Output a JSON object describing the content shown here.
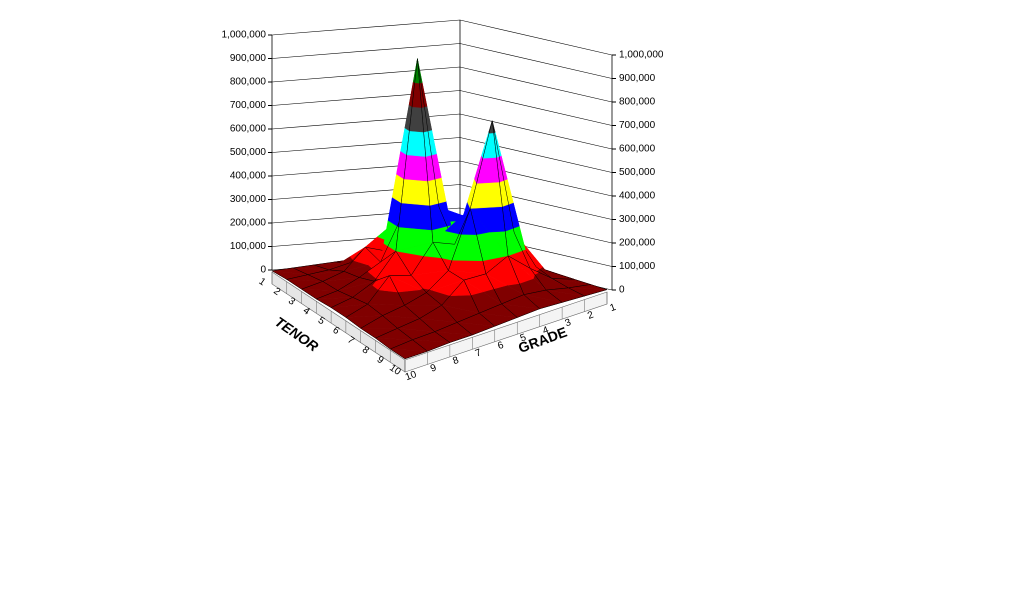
{
  "chart_data": {
    "type": "surface",
    "x_label": "TENOR",
    "y_label": "GRADE",
    "tenor": [
      1,
      2,
      3,
      4,
      5,
      6,
      7,
      8,
      9,
      10
    ],
    "grade": [
      1,
      2,
      3,
      4,
      5,
      6,
      7,
      8,
      9,
      10
    ],
    "values": [
      [
        10000,
        15000,
        20000,
        25000,
        30000,
        25000,
        20000,
        15000,
        10000,
        5000
      ],
      [
        15000,
        20000,
        30000,
        40000,
        50000,
        60000,
        50000,
        30000,
        20000,
        10000
      ],
      [
        20000,
        30000,
        50000,
        70000,
        90000,
        120000,
        150000,
        60000,
        30000,
        10000
      ],
      [
        20000,
        40000,
        80000,
        150000,
        200000,
        300000,
        120000,
        70000,
        30000,
        10000
      ],
      [
        25000,
        50000,
        100000,
        180000,
        350000,
        1000000,
        200000,
        90000,
        40000,
        15000
      ],
      [
        30000,
        60000,
        120000,
        300000,
        220000,
        250000,
        130000,
        150000,
        50000,
        15000
      ],
      [
        25000,
        80000,
        250000,
        750000,
        400000,
        160000,
        90000,
        60000,
        40000,
        10000
      ],
      [
        20000,
        50000,
        120000,
        200000,
        150000,
        150000,
        70000,
        40000,
        25000,
        10000
      ],
      [
        15000,
        30000,
        50000,
        60000,
        50000,
        40000,
        30000,
        20000,
        15000,
        5000
      ],
      [
        10000,
        15000,
        20000,
        25000,
        20000,
        15000,
        10000,
        10000,
        5000,
        5000
      ]
    ],
    "zlim": [
      0,
      1000000
    ],
    "zticks": [
      0,
      {
        "value": 100000,
        "label": "100,000"
      },
      {
        "value": 200000,
        "label": "200,000"
      },
      {
        "value": 300000,
        "label": "300,000"
      },
      {
        "value": 400000,
        "label": "400,000"
      },
      {
        "value": 500000,
        "label": "500,000"
      },
      {
        "value": 600000,
        "label": "600,000"
      },
      {
        "value": 700000,
        "label": "700,000"
      },
      {
        "value": 800000,
        "label": "800,000"
      },
      {
        "value": 900000,
        "label": "900,000"
      },
      {
        "value": 1000000,
        "label": "1,000,000"
      }
    ],
    "band_colors": [
      "#800000",
      "#ff0000",
      "#00ff00",
      "#0000ff",
      "#ffff00",
      "#ff00ff",
      "#00ffff",
      "#404040",
      "#800000",
      "#008000"
    ]
  }
}
